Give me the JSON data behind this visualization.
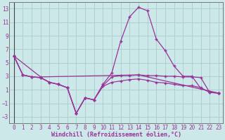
{
  "bg_color": "#cce8e8",
  "line_color": "#993399",
  "grid_color": "#aacccc",
  "xlabel": "Windchill (Refroidissement éolien,°C)",
  "xlim": [
    -0.5,
    23.5
  ],
  "ylim": [
    -4,
    14
  ],
  "yticks": [
    -3,
    -1,
    1,
    3,
    5,
    7,
    9,
    11,
    13
  ],
  "xticks": [
    0,
    1,
    2,
    3,
    4,
    5,
    6,
    7,
    8,
    9,
    10,
    11,
    12,
    13,
    14,
    15,
    16,
    17,
    18,
    19,
    20,
    21,
    22,
    23
  ],
  "series1_x": [
    0,
    1,
    2,
    3,
    4,
    5,
    6,
    7,
    8,
    9,
    10,
    11,
    12,
    13,
    14,
    15,
    16,
    17,
    18,
    19,
    20,
    21,
    22,
    23
  ],
  "series1_y": [
    6.0,
    3.2,
    2.9,
    2.8,
    2.1,
    1.8,
    1.3,
    -2.5,
    -0.2,
    -0.5,
    1.8,
    3.5,
    8.2,
    11.8,
    13.2,
    12.7,
    8.5,
    6.8,
    4.5,
    3.0,
    3.0,
    1.2,
    0.7,
    0.5
  ],
  "series2_x": [
    0,
    1,
    2,
    3,
    4,
    5,
    6,
    7,
    8,
    9,
    10,
    11,
    12,
    13,
    14,
    15,
    16,
    17,
    18,
    19,
    20,
    21,
    22,
    23
  ],
  "series2_y": [
    6.0,
    3.2,
    2.9,
    2.8,
    2.1,
    1.8,
    1.3,
    -2.5,
    -0.2,
    -0.5,
    1.6,
    2.9,
    3.1,
    3.1,
    3.2,
    3.1,
    3.1,
    3.0,
    3.0,
    2.9,
    2.9,
    2.8,
    0.6,
    0.5
  ],
  "series3_x": [
    0,
    1,
    2,
    3,
    4,
    5,
    6,
    7,
    8,
    9,
    10,
    11,
    12,
    13,
    14,
    15,
    16,
    17,
    18,
    19,
    20,
    21,
    22,
    23
  ],
  "series3_y": [
    6.0,
    3.2,
    2.9,
    2.8,
    2.1,
    1.8,
    1.3,
    -2.5,
    -0.2,
    -0.5,
    1.5,
    2.1,
    2.3,
    2.5,
    2.6,
    2.4,
    2.1,
    2.0,
    1.8,
    1.6,
    1.6,
    1.3,
    0.6,
    0.5
  ],
  "series4_x": [
    0,
    3,
    14,
    23
  ],
  "series4_y": [
    6.0,
    2.9,
    3.2,
    0.5
  ]
}
